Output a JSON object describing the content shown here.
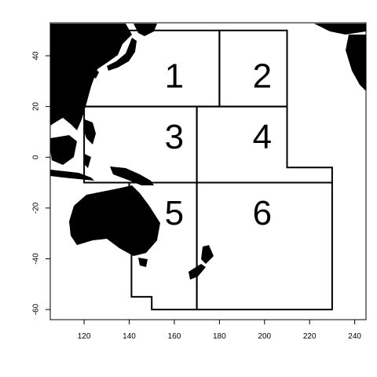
{
  "chart_data": {
    "type": "map",
    "x_axis": {
      "range": [
        105,
        245
      ],
      "ticks": [
        120,
        140,
        160,
        180,
        200,
        220,
        240
      ]
    },
    "y_axis": {
      "range": [
        -64,
        53
      ],
      "ticks": [
        40,
        20,
        0,
        -20,
        -40,
        -60
      ]
    },
    "colors": {
      "land": "#000000",
      "ocean": "#ffffff",
      "boundary": "#000000"
    },
    "regions": [
      {
        "label": "1",
        "label_at": [
          160,
          31
        ],
        "polygon": [
          [
            120,
            50
          ],
          [
            180,
            50
          ],
          [
            180,
            20
          ],
          [
            120,
            20
          ]
        ]
      },
      {
        "label": "2",
        "label_at": [
          199,
          31
        ],
        "polygon": [
          [
            180,
            50
          ],
          [
            210,
            50
          ],
          [
            210,
            20
          ],
          [
            180,
            20
          ]
        ]
      },
      {
        "label": "3",
        "label_at": [
          160,
          7
        ],
        "polygon": [
          [
            120,
            20
          ],
          [
            170,
            20
          ],
          [
            170,
            -10
          ],
          [
            120,
            -10
          ]
        ]
      },
      {
        "label": "4",
        "label_at": [
          199,
          7
        ],
        "polygon": [
          [
            170,
            20
          ],
          [
            210,
            20
          ],
          [
            210,
            -4
          ],
          [
            230,
            -4
          ],
          [
            230,
            -10
          ],
          [
            170,
            -10
          ]
        ]
      },
      {
        "label": "5",
        "label_at": [
          160,
          -23
        ],
        "polygon": [
          [
            140,
            -10
          ],
          [
            170,
            -10
          ],
          [
            170,
            -60
          ],
          [
            150,
            -60
          ],
          [
            150,
            -55
          ],
          [
            141,
            -55
          ],
          [
            141,
            -35
          ],
          [
            140,
            -35
          ]
        ]
      },
      {
        "label": "6",
        "label_at": [
          199,
          -23
        ],
        "polygon": [
          [
            170,
            -10
          ],
          [
            230,
            -10
          ],
          [
            230,
            -60
          ],
          [
            170,
            -60
          ]
        ]
      }
    ]
  }
}
